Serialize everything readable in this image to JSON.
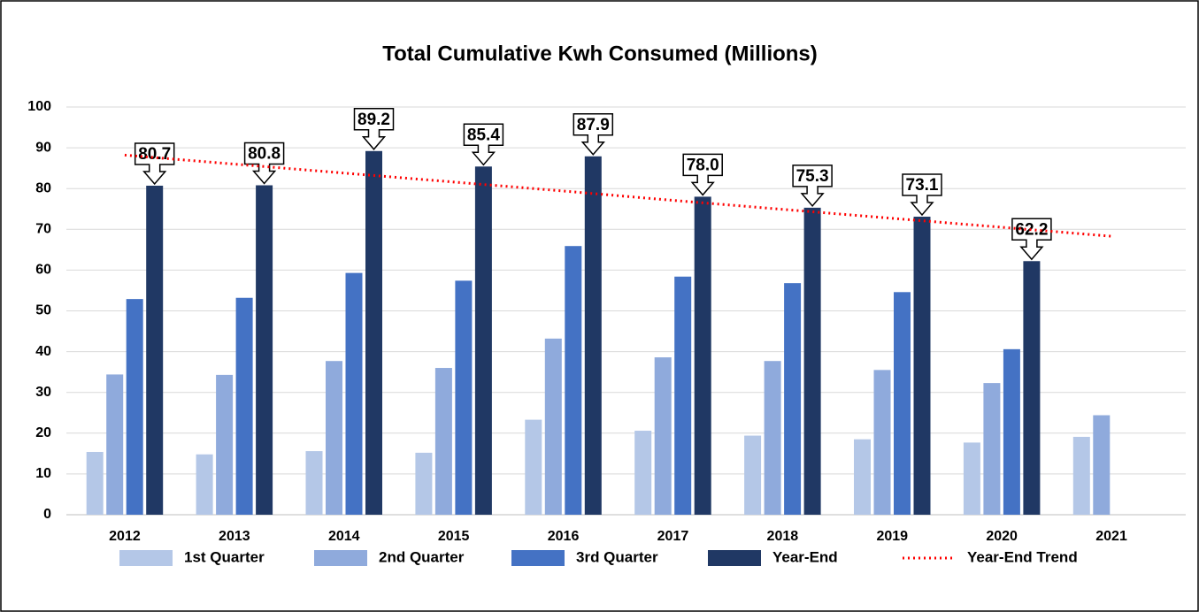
{
  "chart_data": {
    "type": "bar",
    "title": "Total Cumulative Kwh Consumed (Millions)",
    "categories": [
      "2012",
      "2013",
      "2014",
      "2015",
      "2016",
      "2017",
      "2018",
      "2019",
      "2020",
      "2021"
    ],
    "series": [
      {
        "name": "1st Quarter",
        "color": "#b4c7e7",
        "values": [
          15.4,
          14.8,
          15.6,
          15.2,
          23.3,
          20.6,
          19.4,
          18.5,
          17.7,
          19.1
        ]
      },
      {
        "name": "2nd Quarter",
        "color": "#8faadc",
        "values": [
          34.4,
          34.3,
          37.7,
          36.0,
          43.2,
          38.6,
          37.7,
          35.5,
          32.3,
          24.4
        ]
      },
      {
        "name": "3rd Quarter",
        "color": "#4472c4",
        "values": [
          52.9,
          53.2,
          59.3,
          57.4,
          65.9,
          58.4,
          56.8,
          54.6,
          40.6,
          null
        ]
      },
      {
        "name": "Year-End",
        "color": "#203864",
        "values": [
          80.7,
          80.8,
          89.2,
          85.4,
          87.9,
          78.0,
          75.3,
          73.1,
          62.2,
          null
        ],
        "value_labels": [
          "80.7",
          "80.8",
          "89.2",
          "85.4",
          "87.9",
          "78.0",
          "75.3",
          "73.1",
          "62.2",
          null
        ]
      },
      {
        "name": "Year-End Trend",
        "color": "#ff0000",
        "type": "line",
        "dotted": true,
        "values": [
          88.2,
          86.0,
          83.8,
          81.6,
          79.4,
          77.1,
          74.9,
          72.7,
          70.5,
          68.3
        ]
      }
    ],
    "ylim": [
      0,
      100
    ],
    "yticks": [
      0,
      10,
      20,
      30,
      40,
      50,
      60,
      70,
      80,
      90,
      100
    ],
    "grid": true,
    "legend": "bottom"
  }
}
